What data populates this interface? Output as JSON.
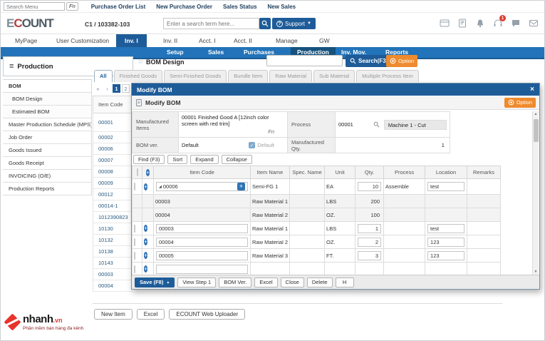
{
  "utility_bar": {
    "menu_search_placeholder": "Search Menu",
    "fn_button": "Fn",
    "links": [
      "Purchase Order List",
      "New Purchase Order",
      "Sales Status",
      "New Sales"
    ]
  },
  "app_header": {
    "logo": "ECOUNT",
    "company_code": "C1 / 103382-103",
    "search_placeholder": "Enter a search term here...",
    "support_label": "Support",
    "notification_badge": "1",
    "icons": [
      "card-icon",
      "note-icon",
      "bell-icon",
      "headset-icon",
      "chat-icon",
      "mail-icon"
    ]
  },
  "main_tabs": {
    "items": [
      "MyPage",
      "User Customization",
      "Inv. I",
      "Inv. II",
      "Acct. I",
      "Acct. II",
      "Manage",
      "GW"
    ],
    "active": "Inv. I"
  },
  "module_nav": {
    "items": [
      "Setup",
      "Sales",
      "Purchases",
      "Production",
      "Inv. Mov.",
      "Reports"
    ],
    "active": "Production"
  },
  "sidebar": {
    "title": "Production",
    "items": [
      {
        "label": "BOM",
        "type": "sec"
      },
      {
        "label": "BOM Design",
        "type": "sub"
      },
      {
        "label": "Estimated BOM",
        "type": "sub"
      },
      {
        "label": "Master Production Schedule (MPS)",
        "type": "item"
      },
      {
        "label": "Job Order",
        "type": "item"
      },
      {
        "label": "Goods Issued",
        "type": "item"
      },
      {
        "label": "Goods Receipt",
        "type": "item"
      },
      {
        "label": "INVOICING (O/E)",
        "type": "item"
      },
      {
        "label": "Production Reports",
        "type": "item"
      }
    ]
  },
  "page": {
    "title": "BOM Design",
    "search_value": "",
    "search_button": "Search(F3)",
    "option_button": "Option",
    "tabs": [
      "All",
      "Finished Goods",
      "Semi-Finished Goods",
      "Bundle Item",
      "Raw Material",
      "Sub Material",
      "Multiple Process Item"
    ],
    "active_tab": "All",
    "pagination": [
      "«",
      "‹",
      "1",
      "2",
      "›"
    ],
    "pagination_active": "1",
    "list_header": "Item Code",
    "item_codes": [
      "00001",
      "00002",
      "00006",
      "00007",
      "00008",
      "00009",
      "00012",
      "00014-1",
      "1012390823",
      "10130",
      "10132",
      "10138",
      "10143",
      "00003",
      "00004"
    ]
  },
  "dialog": {
    "window_title": "Modify BOM",
    "close_label": "×",
    "header_title": "Modify BOM",
    "option_button": "Option",
    "form": {
      "manufactured_items_label": "Manufactured Items",
      "manufactured_items_value": "00001 Finished Good A [12inch color screen with red trim]",
      "fn_hint": "Fn",
      "process_label": "Process",
      "process_code": "00001",
      "process_name": "Machine 1 - Cut",
      "bom_ver_label": "BOM ver.",
      "bom_ver_value": "Default",
      "default_checkbox_label": "Default",
      "manufactured_qty_label": "Manufactured Qty.",
      "manufactured_qty_value": "1"
    },
    "toolbar_buttons": [
      "Find (F3)",
      "Sort",
      "Expand",
      "Collapse"
    ],
    "grid": {
      "columns": [
        "Item Code",
        "Item Name",
        "Spec. Name",
        "Unit",
        "Qty.",
        "Process",
        "Location",
        "Remarks"
      ],
      "rows": [
        {
          "type": "parent",
          "item_code": "00006",
          "item_name": "Semi-FG 1",
          "spec_name": "",
          "unit": "EA",
          "qty": "10",
          "process": "Assemble",
          "location": "test",
          "remarks": ""
        },
        {
          "type": "child",
          "item_code": "00003",
          "item_name": "Raw Material 1",
          "spec_name": "",
          "unit": "LBS",
          "qty": "200",
          "process": "",
          "location": "",
          "remarks": ""
        },
        {
          "type": "child",
          "item_code": "00004",
          "item_name": "Raw Material 2",
          "spec_name": "",
          "unit": "OZ.",
          "qty": "100",
          "process": "",
          "location": "",
          "remarks": ""
        },
        {
          "type": "normal",
          "item_code": "00003",
          "item_name": "Raw Material 1",
          "spec_name": "",
          "unit": "LBS",
          "qty": "1",
          "process": "",
          "location": "test",
          "remarks": ""
        },
        {
          "type": "normal",
          "item_code": "00004",
          "item_name": "Raw Material 2",
          "spec_name": "",
          "unit": "OZ.",
          "qty": "2",
          "process": "",
          "location": "123",
          "remarks": ""
        },
        {
          "type": "normal",
          "item_code": "00005",
          "item_name": "Raw Material 3",
          "spec_name": "",
          "unit": "FT.",
          "qty": "3",
          "process": "",
          "location": "123",
          "remarks": ""
        },
        {
          "type": "empty",
          "item_code": "",
          "item_name": "",
          "spec_name": "",
          "unit": "",
          "qty": "",
          "process": "",
          "location": "",
          "remarks": ""
        }
      ]
    },
    "footer": {
      "save": "Save (F8)",
      "others": [
        "View Step 1",
        "BOM Ver.",
        "Excel",
        "Close",
        "Delete",
        "H"
      ]
    }
  },
  "page_footer": {
    "buttons": [
      "New Item",
      "Excel",
      "ECOUNT Web Uploader"
    ]
  },
  "brand": {
    "name": "nhanh",
    "tld": ".vn",
    "tagline": "Phần mềm bán hàng đa kênh"
  }
}
